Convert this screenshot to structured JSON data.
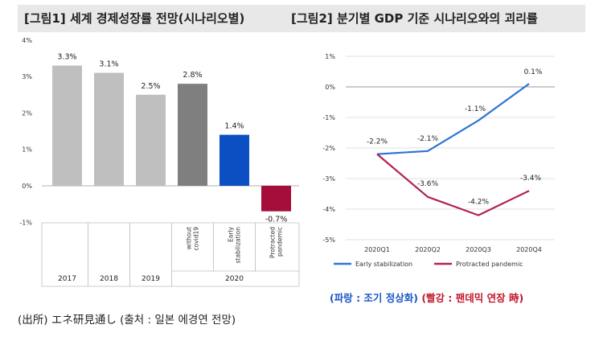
{
  "header": {
    "fig1_title": "[그림1] 세계 경제성장률 전망(시나리오별)",
    "fig2_title": "[그림2] 분기별 GDP 기준 시나리오와의 괴리률"
  },
  "colors": {
    "gray_light": "#bfbfbf",
    "gray_dark": "#7f7f7f",
    "blue": "#0b4fc2",
    "crimson": "#a50d3b",
    "line_blue": "#2e75d4",
    "line_red": "#b3234c",
    "title_bar": "#e8e8e8",
    "grid": "#d9d9d9"
  },
  "chart_data": [
    {
      "type": "bar",
      "categories": [
        "2017",
        "2018",
        "2019",
        "without covid19",
        "Early stabilization",
        "Protracted pandemic"
      ],
      "values": [
        3.3,
        3.1,
        2.5,
        2.8,
        1.4,
        -0.7
      ],
      "value_labels": [
        "3.3%",
        "3.1%",
        "2.5%",
        "2.8%",
        "1.4%",
        "-0.7%"
      ],
      "bar_colors": [
        "#bfbfbf",
        "#bfbfbf",
        "#bfbfbf",
        "#7f7f7f",
        "#0b4fc2",
        "#a50d3b"
      ],
      "group_labels": [
        "2017",
        "2018",
        "2019",
        "2020"
      ],
      "group_spans": [
        [
          0,
          0
        ],
        [
          1,
          1
        ],
        [
          2,
          2
        ],
        [
          3,
          5
        ]
      ],
      "yticks": [
        4,
        3,
        2,
        1,
        0,
        -1
      ],
      "ytick_labels": [
        "4%",
        "3%",
        "2%",
        "1%",
        "0%",
        "-1%"
      ],
      "ylim": [
        -1,
        4
      ],
      "title": "",
      "xlabel": "",
      "ylabel": ""
    },
    {
      "type": "line",
      "x": [
        "2020Q1",
        "2020Q2",
        "2020Q3",
        "2020Q4"
      ],
      "series": [
        {
          "name": "Early stabilization",
          "values": [
            -2.2,
            -2.1,
            -1.1,
            0.1
          ],
          "labels": [
            "-2.2%",
            "-2.1%",
            "-1.1%",
            "0.1%"
          ],
          "color": "#2e75d4"
        },
        {
          "name": "Protracted pandemic",
          "values": [
            -2.2,
            -3.6,
            -4.2,
            -3.4
          ],
          "labels": [
            "",
            "-3.6%",
            "-4.2%",
            "-3.4%"
          ],
          "color": "#b3234c"
        }
      ],
      "yticks": [
        1,
        0,
        -1,
        -2,
        -3,
        -4,
        -5
      ],
      "ytick_labels": [
        "1%",
        "0%",
        "-1%",
        "-2%",
        "-3%",
        "-4%",
        "-5%"
      ],
      "ylim": [
        -5,
        1
      ],
      "legend": "bottom",
      "title": "",
      "xlabel": "",
      "ylabel": ""
    }
  ],
  "note": {
    "blue_part": "(파랑 : 조기 정상화)",
    "red_part": "(빨강 : 팬데믹 연장 時)"
  },
  "source": "(出所) エネ研見通し (출처 : 일본 에경연 전망)"
}
